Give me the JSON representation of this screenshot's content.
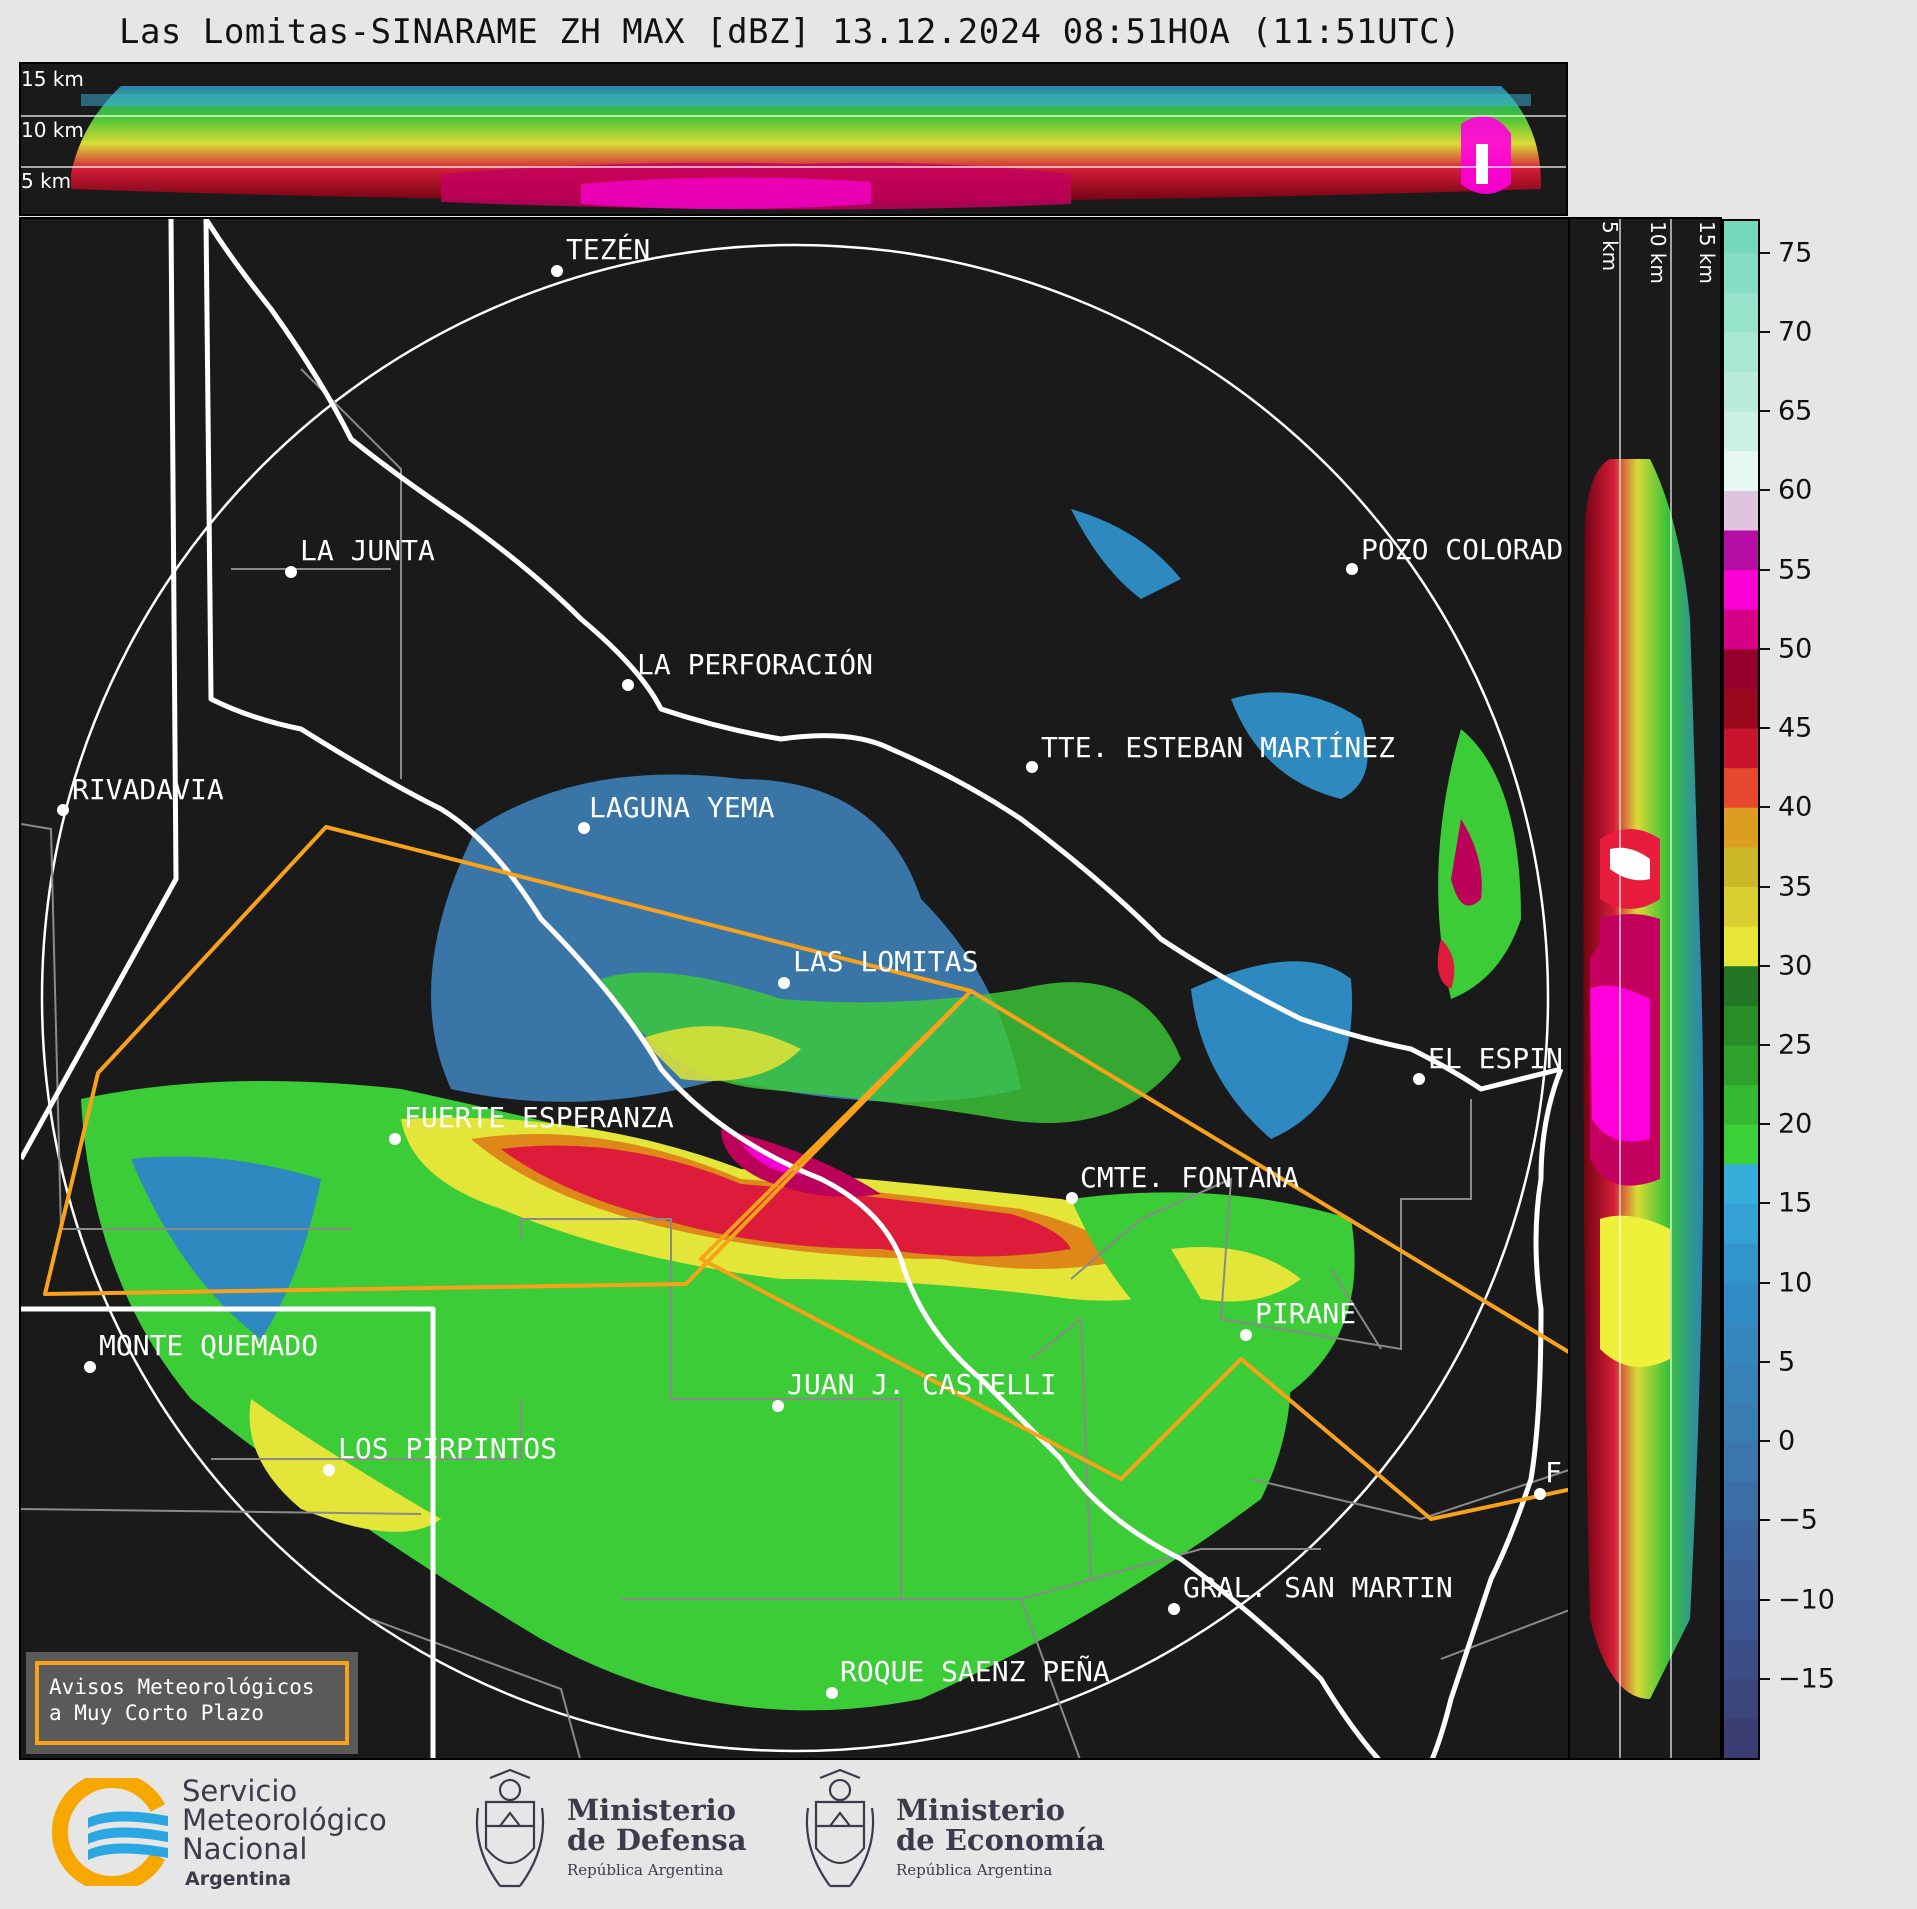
{
  "title": "Las Lomitas-SINARAME ZH MAX [dBZ] 13.12.2024 08:51HOA (11:51UTC)",
  "cross_section_top": {
    "altitude_labels": [
      "15 km",
      "10 km",
      "5 km"
    ]
  },
  "cross_section_right": {
    "altitude_labels": [
      "5 km",
      "10 km",
      "15 km"
    ]
  },
  "colorbar": {
    "unit": "dBZ",
    "min": -20,
    "max": 77,
    "ticks": [
      "75",
      "70",
      "65",
      "60",
      "55",
      "50",
      "45",
      "40",
      "35",
      "30",
      "25",
      "20",
      "15",
      "10",
      "5",
      "0",
      "−5",
      "−10",
      "−15"
    ],
    "tick_values": [
      75,
      70,
      65,
      60,
      55,
      50,
      45,
      40,
      35,
      30,
      25,
      20,
      15,
      10,
      5,
      0,
      -5,
      -10,
      -15
    ],
    "color_stops": [
      {
        "dbz": -20,
        "color": "#3a3a6e"
      },
      {
        "dbz": -10,
        "color": "#3d5a96"
      },
      {
        "dbz": 0,
        "color": "#3c7ab0"
      },
      {
        "dbz": 10,
        "color": "#2f8fc8"
      },
      {
        "dbz": 17.5,
        "color": "#39b3e0"
      },
      {
        "dbz": 18,
        "color": "#3dd63a"
      },
      {
        "dbz": 29.9,
        "color": "#1f6b1f"
      },
      {
        "dbz": 30,
        "color": "#eef03a"
      },
      {
        "dbz": 37,
        "color": "#c9b128"
      },
      {
        "dbz": 40,
        "color": "#e98e1a"
      },
      {
        "dbz": 42,
        "color": "#e81c3c"
      },
      {
        "dbz": 48,
        "color": "#7a0010"
      },
      {
        "dbz": 50,
        "color": "#c4005e"
      },
      {
        "dbz": 54,
        "color": "#ff00dd"
      },
      {
        "dbz": 58,
        "color": "#7a1577"
      },
      {
        "dbz": 59,
        "color": "#ffffff"
      },
      {
        "dbz": 64,
        "color": "#c8f0e2"
      },
      {
        "dbz": 77,
        "color": "#6fd6b8"
      }
    ]
  },
  "cities": [
    {
      "name": "TEZÉN"
    },
    {
      "name": "LA JUNTA"
    },
    {
      "name": "POZO COLORAD"
    },
    {
      "name": "LA PERFORACIÓN"
    },
    {
      "name": "TTE. ESTEBAN MARTÍNEZ"
    },
    {
      "name": "RIVADAVIA"
    },
    {
      "name": "LAGUNA YEMA"
    },
    {
      "name": "LAS LOMITAS"
    },
    {
      "name": "EL ESPIN"
    },
    {
      "name": "FUERTE ESPERANZA"
    },
    {
      "name": "CMTE. FONTANA"
    },
    {
      "name": "PIRANE"
    },
    {
      "name": "MONTE QUEMADO"
    },
    {
      "name": "JUAN J. CASTELLI"
    },
    {
      "name": "LOS PIRPINTOS"
    },
    {
      "name": "GRAL. SAN MARTIN"
    },
    {
      "name": "ROQUE SAENZ PEÑA"
    },
    {
      "name": "F"
    }
  ],
  "warning": {
    "line1": "Avisos Meteorológicos",
    "line2": "a Muy Corto Plazo"
  },
  "footer": {
    "smn": {
      "line1": "Servicio",
      "line2": "Meteorológico",
      "line3": "Nacional",
      "line4": "Argentina"
    },
    "defensa": {
      "line1": "Ministerio",
      "line2": "de Defensa",
      "line3": "República Argentina"
    },
    "economia": {
      "line1": "Ministerio",
      "line2": "de Economía",
      "line3": "República Argentina"
    }
  }
}
